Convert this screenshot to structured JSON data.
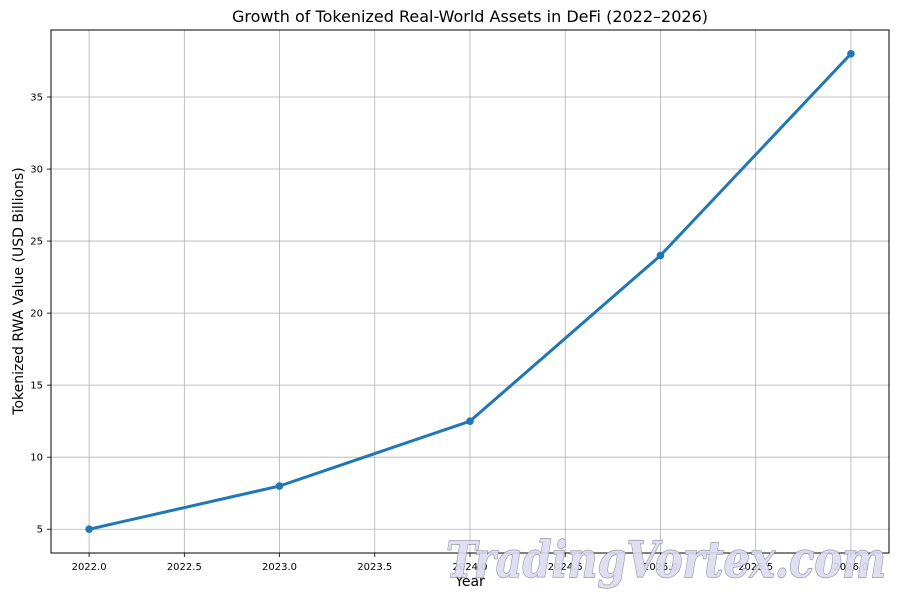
{
  "chart_data": {
    "type": "line",
    "title": "Growth of Tokenized Real-World Assets in DeFi (2022–2026)",
    "xlabel": "Year",
    "ylabel": "Tokenized RWA Value (USD Billions)",
    "x": [
      2022,
      2023,
      2024,
      2025,
      2026
    ],
    "series": [
      {
        "name": "Tokenized RWA Value",
        "values": [
          5.0,
          8.0,
          12.5,
          24.0,
          38.0
        ],
        "color": "#1f77b4",
        "marker": "circle"
      }
    ],
    "xlim": [
      2021.8,
      2026.2
    ],
    "ylim": [
      3.35,
      39.65
    ],
    "x_ticks": [
      "2022.0",
      "2022.5",
      "2023.0",
      "2023.5",
      "2024.0",
      "2024.5",
      "2025.0",
      "2025.5",
      "2026.0"
    ],
    "y_ticks": [
      "5",
      "10",
      "15",
      "20",
      "25",
      "30",
      "35"
    ],
    "grid": true,
    "legend": null
  },
  "watermark": {
    "text": "TradingVortex.com"
  }
}
